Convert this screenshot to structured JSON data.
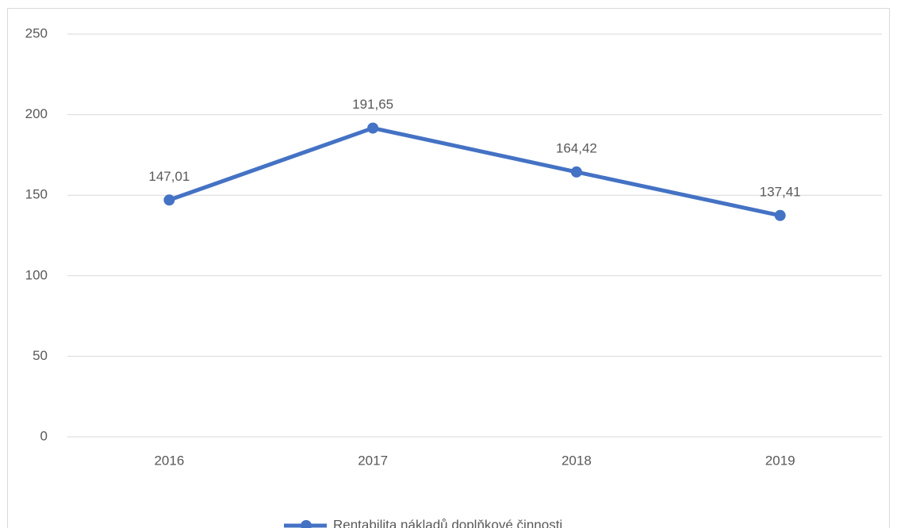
{
  "chart_data": {
    "type": "line",
    "categories": [
      "2016",
      "2017",
      "2018",
      "2019"
    ],
    "series": [
      {
        "name": "Rentabilita nákladů doplňkové činnosti",
        "color": "#4472c4",
        "values": [
          147.01,
          191.65,
          164.42,
          137.41
        ],
        "value_labels": [
          "147,01",
          "191,65",
          "164,42",
          "137,41"
        ]
      }
    ],
    "ylim": [
      0,
      250
    ],
    "yticks": [
      0,
      50,
      100,
      150,
      200,
      250
    ],
    "grid": true,
    "legend": "bottom"
  }
}
